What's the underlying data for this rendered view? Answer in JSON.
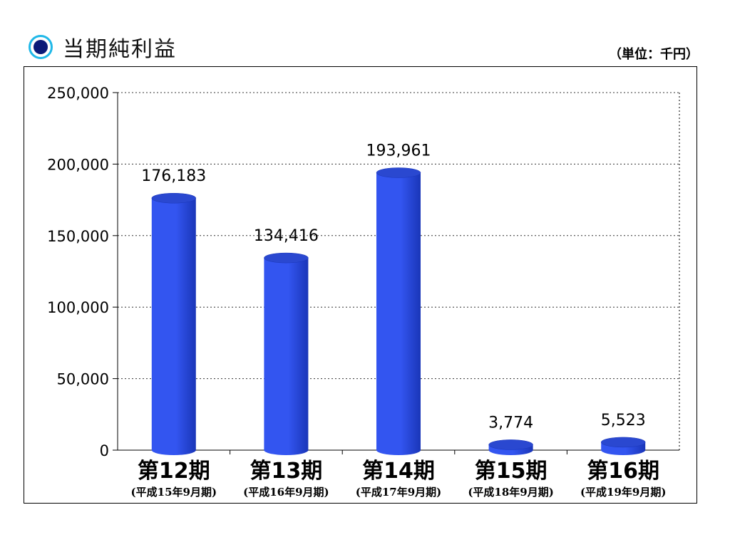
{
  "header": {
    "title": "当期純利益",
    "unit": "（単位：千円）"
  },
  "colors": {
    "bar": "#3355f0",
    "bar_dark": "#1a36b8",
    "bar_top": "#2a48d0",
    "bullet_ring": "#20b8e8",
    "bullet_center": "#0a1a78"
  },
  "chart_data": {
    "type": "bar",
    "title": "当期純利益",
    "unit": "（単位：千円）",
    "categories": [
      "第12期",
      "第13期",
      "第14期",
      "第15期",
      "第16期"
    ],
    "sublabels": [
      "(平成15年9月期)",
      "(平成16年9月期)",
      "(平成17年9月期)",
      "(平成18年9月期)",
      "(平成19年9月期)"
    ],
    "values": [
      176183,
      134416,
      193961,
      3774,
      5523
    ],
    "data_labels": [
      "176,183",
      "134,416",
      "193,961",
      "3,774",
      "5,523"
    ],
    "y_ticks": [
      "0",
      "50,000",
      "100,000",
      "150,000",
      "200,000",
      "250,000"
    ],
    "ylim": [
      0,
      250000
    ],
    "grid": true,
    "legend": "none"
  }
}
